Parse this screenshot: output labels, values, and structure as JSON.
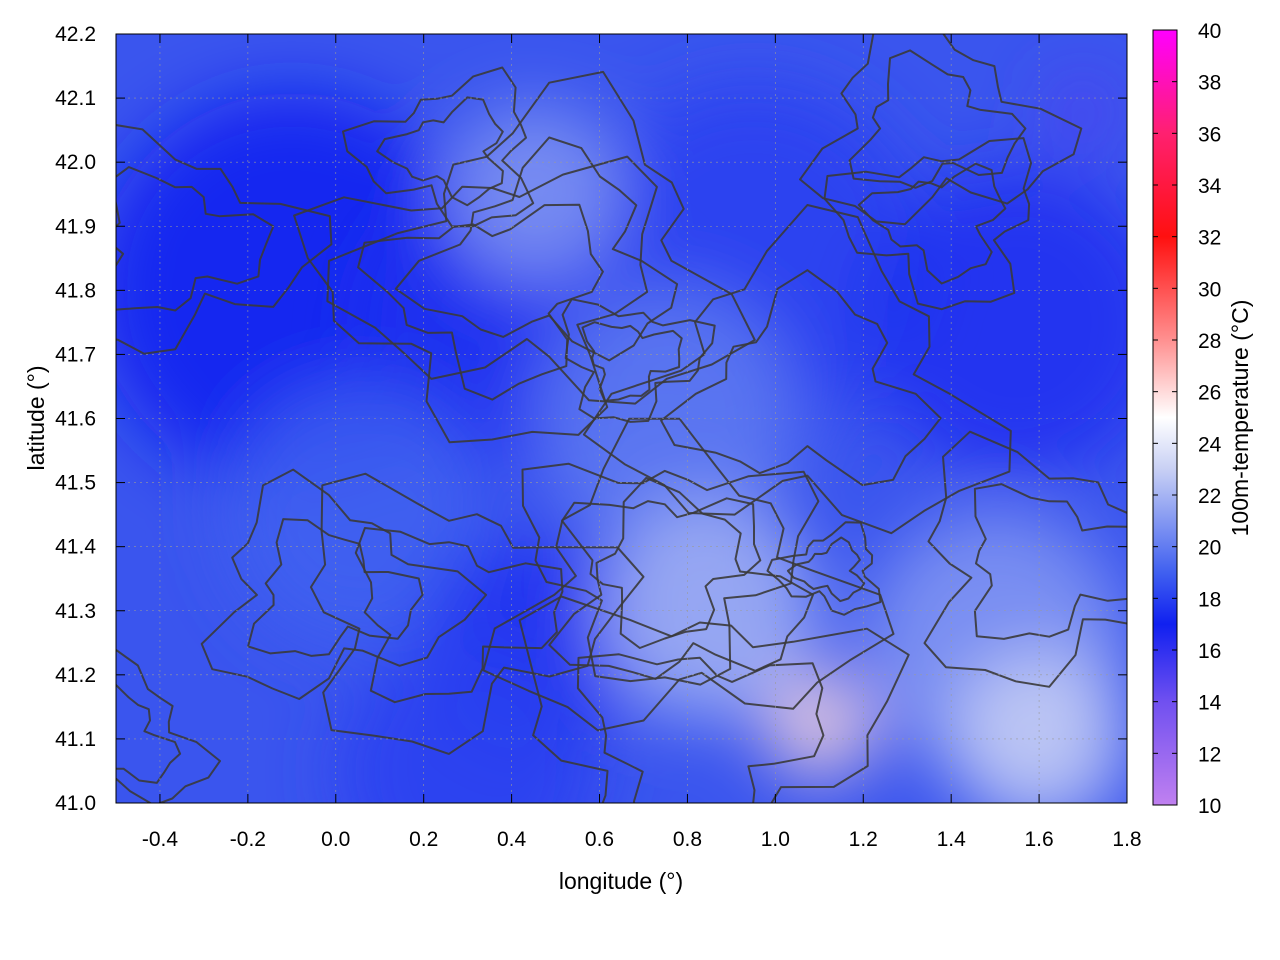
{
  "chart_data": {
    "type": "heatmap",
    "title": "",
    "xlabel": "longitude (°)",
    "ylabel": "latitude (°)",
    "xlim": [
      -0.5,
      1.8
    ],
    "ylim": [
      41.0,
      42.2
    ],
    "x_ticks": [
      -0.4,
      -0.2,
      0.0,
      0.2,
      0.4,
      0.6,
      0.8,
      1.0,
      1.2,
      1.4,
      1.6,
      1.8
    ],
    "x_tick_labels": [
      "-0.4",
      "-0.2",
      "0.0",
      "0.2",
      "0.4",
      "0.6",
      "0.8",
      "1.0",
      "1.2",
      "1.4",
      "1.6",
      "1.8"
    ],
    "y_ticks": [
      41.0,
      41.1,
      41.2,
      41.3,
      41.4,
      41.5,
      41.6,
      41.7,
      41.8,
      41.9,
      42.0,
      42.1,
      42.2
    ],
    "y_tick_labels": [
      "41.0",
      "41.1",
      "41.2",
      "41.3",
      "41.4",
      "41.5",
      "41.6",
      "41.7",
      "41.8",
      "41.9",
      "42.0",
      "42.1",
      "42.2"
    ],
    "grid": true,
    "colorbar": {
      "label": "100m-temperature (°C)",
      "range": [
        10,
        40
      ],
      "ticks": [
        10,
        12,
        14,
        16,
        18,
        20,
        22,
        24,
        26,
        28,
        30,
        32,
        34,
        36,
        38,
        40
      ],
      "tick_labels": [
        "10",
        "12",
        "14",
        "16",
        "18",
        "20",
        "22",
        "24",
        "26",
        "28",
        "30",
        "32",
        "34",
        "36",
        "38",
        "40"
      ],
      "stops": [
        {
          "value": 10,
          "color": "#c080f0"
        },
        {
          "value": 14,
          "color": "#7050f0"
        },
        {
          "value": 17,
          "color": "#1020f0"
        },
        {
          "value": 19,
          "color": "#4060f0"
        },
        {
          "value": 23,
          "color": "#c8d0f4"
        },
        {
          "value": 25,
          "color": "#ffffff"
        },
        {
          "value": 28,
          "color": "#ff9090"
        },
        {
          "value": 32,
          "color": "#ff1010"
        },
        {
          "value": 36,
          "color": "#ff2070"
        },
        {
          "value": 40,
          "color": "#ff00ff"
        }
      ]
    },
    "field_regions": [
      {
        "lon": -0.1,
        "lat": 41.8,
        "radius": 0.45,
        "value": 17
      },
      {
        "lon": 0.4,
        "lat": 41.75,
        "radius": 0.35,
        "value": 17.5
      },
      {
        "lon": 0.95,
        "lat": 41.85,
        "radius": 0.4,
        "value": 18
      },
      {
        "lon": 1.55,
        "lat": 41.75,
        "radius": 0.35,
        "value": 17.5
      },
      {
        "lon": 0.75,
        "lat": 41.6,
        "radius": 0.3,
        "value": 20
      },
      {
        "lon": 0.45,
        "lat": 41.95,
        "radius": 0.2,
        "value": 21
      },
      {
        "lon": 0.05,
        "lat": 41.45,
        "radius": 0.3,
        "value": 19
      },
      {
        "lon": 0.45,
        "lat": 41.25,
        "radius": 0.25,
        "value": 17.5
      },
      {
        "lon": 0.85,
        "lat": 41.3,
        "radius": 0.25,
        "value": 22
      },
      {
        "lon": 1.1,
        "lat": 41.12,
        "radius": 0.12,
        "value": 26
      },
      {
        "lon": 1.5,
        "lat": 41.25,
        "radius": 0.3,
        "value": 21
      },
      {
        "lon": 1.6,
        "lat": 41.1,
        "radius": 0.2,
        "value": 23
      },
      {
        "lon": 0.3,
        "lat": 41.05,
        "radius": 0.3,
        "value": 18
      },
      {
        "lon": 1.7,
        "lat": 42.08,
        "radius": 0.08,
        "value": 15
      }
    ]
  }
}
